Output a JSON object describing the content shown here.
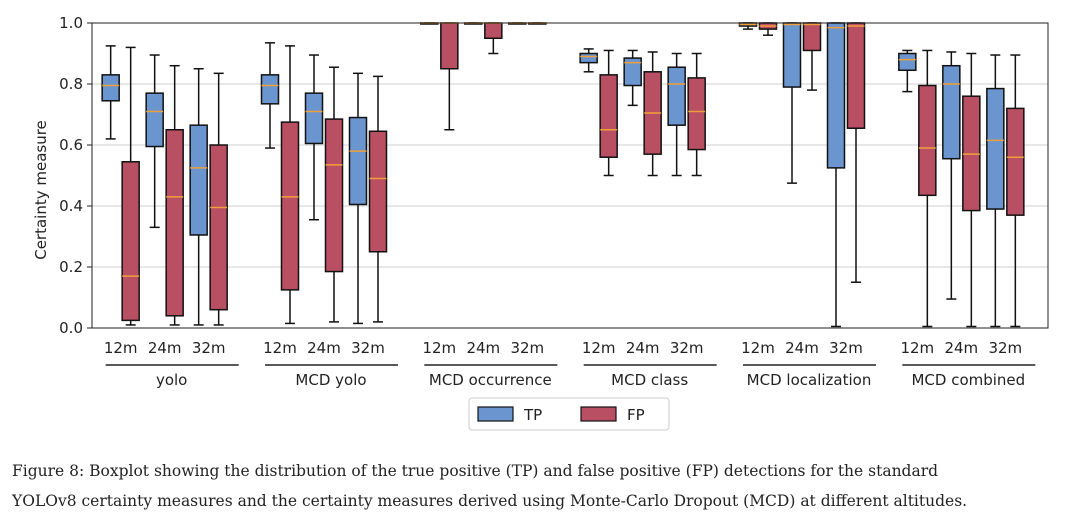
{
  "chart_data": {
    "type": "boxplot",
    "ylabel": "Certainty measure",
    "ylim": [
      0,
      1
    ],
    "yticks": [
      "0.0",
      "0.2",
      "0.4",
      "0.6",
      "0.8",
      "1.0"
    ],
    "grid": "horizontal",
    "legend": {
      "placement": "bottom-center",
      "entries": [
        "TP",
        "FP"
      ]
    },
    "colors": {
      "TP": "#6a95cf",
      "FP": "#b94f63",
      "median": "#f0a03a",
      "grid": "#cfcfcf"
    },
    "groups": [
      {
        "name": "yolo",
        "altitudes": [
          {
            "label": "12m",
            "TP": {
              "whislo": 0.62,
              "q1": 0.745,
              "med": 0.795,
              "q3": 0.83,
              "whishi": 0.925
            },
            "FP": {
              "whislo": 0.01,
              "q1": 0.025,
              "med": 0.17,
              "q3": 0.545,
              "whishi": 0.92
            }
          },
          {
            "label": "24m",
            "TP": {
              "whislo": 0.33,
              "q1": 0.595,
              "med": 0.71,
              "q3": 0.77,
              "whishi": 0.895
            },
            "FP": {
              "whislo": 0.01,
              "q1": 0.04,
              "med": 0.43,
              "q3": 0.65,
              "whishi": 0.86
            }
          },
          {
            "label": "32m",
            "TP": {
              "whislo": 0.01,
              "q1": 0.305,
              "med": 0.525,
              "q3": 0.665,
              "whishi": 0.85
            },
            "FP": {
              "whislo": 0.01,
              "q1": 0.06,
              "med": 0.395,
              "q3": 0.6,
              "whishi": 0.835
            }
          }
        ]
      },
      {
        "name": "MCD yolo",
        "altitudes": [
          {
            "label": "12m",
            "TP": {
              "whislo": 0.59,
              "q1": 0.735,
              "med": 0.795,
              "q3": 0.83,
              "whishi": 0.935
            },
            "FP": {
              "whislo": 0.015,
              "q1": 0.125,
              "med": 0.43,
              "q3": 0.675,
              "whishi": 0.925
            }
          },
          {
            "label": "24m",
            "TP": {
              "whislo": 0.355,
              "q1": 0.605,
              "med": 0.71,
              "q3": 0.77,
              "whishi": 0.895
            },
            "FP": {
              "whislo": 0.02,
              "q1": 0.185,
              "med": 0.535,
              "q3": 0.685,
              "whishi": 0.855
            }
          },
          {
            "label": "32m",
            "TP": {
              "whislo": 0.015,
              "q1": 0.405,
              "med": 0.58,
              "q3": 0.69,
              "whishi": 0.835
            },
            "FP": {
              "whislo": 0.02,
              "q1": 0.25,
              "med": 0.49,
              "q3": 0.645,
              "whishi": 0.825
            }
          }
        ]
      },
      {
        "name": "MCD occurrence",
        "altitudes": [
          {
            "label": "12m",
            "TP": {
              "whislo": 1.0,
              "q1": 1.0,
              "med": 1.0,
              "q3": 1.0,
              "whishi": 1.0
            },
            "FP": {
              "whislo": 0.65,
              "q1": 0.85,
              "med": 1.0,
              "q3": 1.0,
              "whishi": 1.0
            }
          },
          {
            "label": "24m",
            "TP": {
              "whislo": 1.0,
              "q1": 1.0,
              "med": 1.0,
              "q3": 1.0,
              "whishi": 1.0
            },
            "FP": {
              "whislo": 0.9,
              "q1": 0.95,
              "med": 1.0,
              "q3": 1.0,
              "whishi": 1.0
            }
          },
          {
            "label": "32m",
            "TP": {
              "whislo": 1.0,
              "q1": 1.0,
              "med": 1.0,
              "q3": 1.0,
              "whishi": 1.0
            },
            "FP": {
              "whislo": 1.0,
              "q1": 1.0,
              "med": 1.0,
              "q3": 1.0,
              "whishi": 1.0
            }
          }
        ]
      },
      {
        "name": "MCD class",
        "altitudes": [
          {
            "label": "12m",
            "TP": {
              "whislo": 0.84,
              "q1": 0.87,
              "med": 0.89,
              "q3": 0.9,
              "whishi": 0.915
            },
            "FP": {
              "whislo": 0.5,
              "q1": 0.56,
              "med": 0.65,
              "q3": 0.83,
              "whishi": 0.91
            }
          },
          {
            "label": "24m",
            "TP": {
              "whislo": 0.73,
              "q1": 0.795,
              "med": 0.87,
              "q3": 0.885,
              "whishi": 0.91
            },
            "FP": {
              "whislo": 0.5,
              "q1": 0.57,
              "med": 0.705,
              "q3": 0.84,
              "whishi": 0.905
            }
          },
          {
            "label": "32m",
            "TP": {
              "whislo": 0.5,
              "q1": 0.665,
              "med": 0.8,
              "q3": 0.855,
              "whishi": 0.9
            },
            "FP": {
              "whislo": 0.5,
              "q1": 0.585,
              "med": 0.71,
              "q3": 0.82,
              "whishi": 0.9
            }
          }
        ]
      },
      {
        "name": "MCD localization",
        "altitudes": [
          {
            "label": "12m",
            "TP": {
              "whislo": 0.98,
              "q1": 0.99,
              "med": 0.995,
              "q3": 1.0,
              "whishi": 1.0
            },
            "FP": {
              "whislo": 0.96,
              "q1": 0.98,
              "med": 0.99,
              "q3": 1.0,
              "whishi": 1.0
            }
          },
          {
            "label": "24m",
            "TP": {
              "whislo": 0.475,
              "q1": 0.79,
              "med": 0.995,
              "q3": 1.0,
              "whishi": 1.0
            },
            "FP": {
              "whislo": 0.78,
              "q1": 0.91,
              "med": 0.995,
              "q3": 1.0,
              "whishi": 1.0
            }
          },
          {
            "label": "32m",
            "TP": {
              "whislo": 0.005,
              "q1": 0.525,
              "med": 0.985,
              "q3": 1.0,
              "whishi": 1.0
            },
            "FP": {
              "whislo": 0.15,
              "q1": 0.655,
              "med": 0.99,
              "q3": 1.0,
              "whishi": 1.0
            }
          }
        ]
      },
      {
        "name": "MCD combined",
        "altitudes": [
          {
            "label": "12m",
            "TP": {
              "whislo": 0.775,
              "q1": 0.845,
              "med": 0.88,
              "q3": 0.9,
              "whishi": 0.91
            },
            "FP": {
              "whislo": 0.005,
              "q1": 0.435,
              "med": 0.59,
              "q3": 0.795,
              "whishi": 0.91
            }
          },
          {
            "label": "24m",
            "TP": {
              "whislo": 0.095,
              "q1": 0.555,
              "med": 0.8,
              "q3": 0.86,
              "whishi": 0.905
            },
            "FP": {
              "whislo": 0.005,
              "q1": 0.385,
              "med": 0.57,
              "q3": 0.76,
              "whishi": 0.9
            }
          },
          {
            "label": "32m",
            "TP": {
              "whislo": 0.005,
              "q1": 0.39,
              "med": 0.615,
              "q3": 0.785,
              "whishi": 0.895
            },
            "FP": {
              "whislo": 0.005,
              "q1": 0.37,
              "med": 0.56,
              "q3": 0.72,
              "whishi": 0.895
            }
          }
        ]
      }
    ]
  },
  "caption": {
    "line1": "Figure 8: Boxplot showing the distribution of the true positive (TP) and false positive (FP) detections for the standard",
    "line2": "YOLOv8 certainty measures and the certainty measures derived using Monte-Carlo Dropout (MCD) at different altitudes."
  }
}
